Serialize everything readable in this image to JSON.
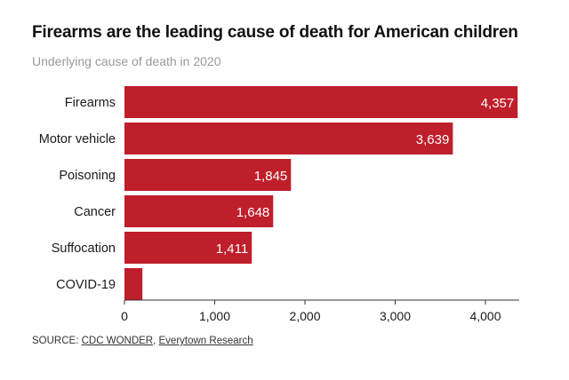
{
  "title": "Firearms are the leading cause of death for American children",
  "subtitle": "Underlying cause of death in 2020",
  "source": {
    "prefix": "SOURCE:",
    "links": [
      "CDC WONDER",
      "Everytown Research"
    ],
    "separator": ","
  },
  "colors": {
    "bar": "#bf1e2b",
    "bar_label": "#ffffff",
    "axis": "#333333",
    "text": "#1a1a1a"
  },
  "chart_data": {
    "type": "bar",
    "orientation": "horizontal",
    "categories": [
      "Firearms",
      "Motor vehicle",
      "Poisoning",
      "Cancer",
      "Suffocation",
      "COVID-19"
    ],
    "values": [
      4357,
      3639,
      1845,
      1648,
      1411,
      199
    ],
    "value_labels": [
      "4,357",
      "3,639",
      "1,845",
      "1,648",
      "1,411",
      ""
    ],
    "xlim": [
      0,
      4500
    ],
    "xticks": [
      0,
      1000,
      2000,
      3000,
      4000
    ],
    "xtick_labels": [
      "0",
      "1,000",
      "2,000",
      "3,000",
      "4,000"
    ],
    "grid": false,
    "legend": "none"
  }
}
